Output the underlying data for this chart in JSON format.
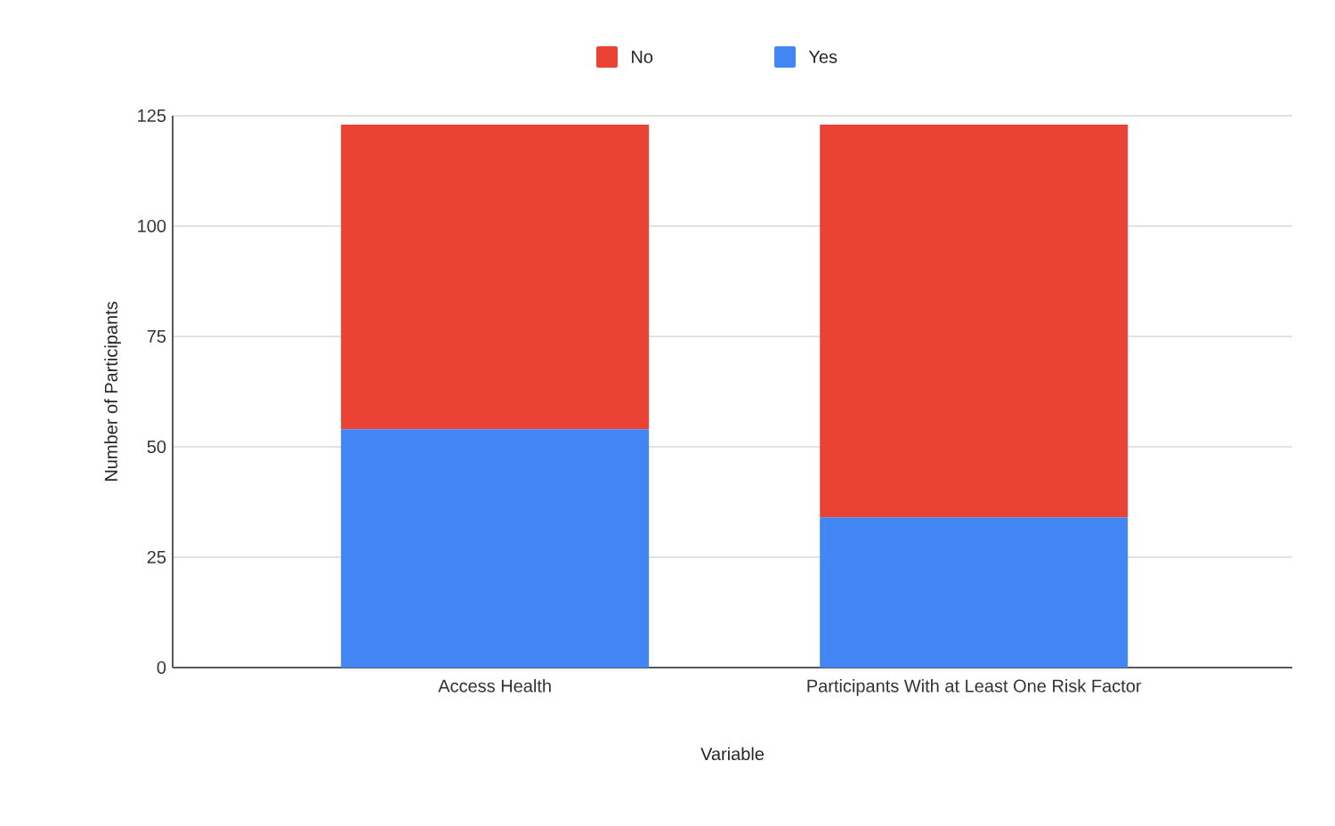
{
  "chart_data": {
    "type": "bar",
    "stacked": true,
    "categories": [
      "Access Health",
      "Participants With at Least One Risk Factor"
    ],
    "series": [
      {
        "name": "Yes",
        "color": "#4285f4",
        "values": [
          54,
          34
        ]
      },
      {
        "name": "No",
        "color": "#ea4335",
        "values": [
          69,
          89
        ]
      }
    ],
    "xlabel": "Variable",
    "ylabel": "Number of Participants",
    "ylim": [
      0,
      125
    ],
    "yticks": [
      0,
      25,
      50,
      75,
      100,
      125
    ],
    "grid": "y",
    "legend": "top"
  }
}
